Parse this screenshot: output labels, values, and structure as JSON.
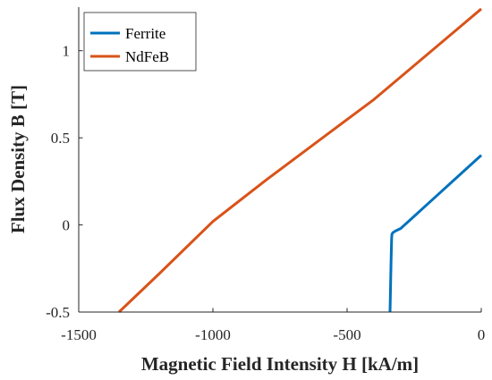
{
  "chart_data": {
    "type": "line",
    "xlabel": "Magnetic Field Intensity H [kA/m]",
    "ylabel": "Flux Density B [T]",
    "xlim": [
      -1500,
      0
    ],
    "ylim": [
      -0.5,
      1.25
    ],
    "xticks": [
      -1500,
      -1000,
      -500,
      0
    ],
    "xtick_labels": [
      "-1500",
      "-1000",
      "-500",
      "0"
    ],
    "yticks": [
      -0.5,
      0,
      0.5,
      1
    ],
    "ytick_labels": [
      "-0.5",
      "0",
      "0.5",
      "1"
    ],
    "grid": false,
    "legend_position": "top-left",
    "series": [
      {
        "name": "Ferrite",
        "color": "#0072BD",
        "x": [
          -340,
          -338,
          -336,
          -334,
          -333,
          -330,
          -320,
          -300,
          -250,
          -200,
          -150,
          -100,
          -50,
          0
        ],
        "y": [
          -0.5,
          -0.35,
          -0.2,
          -0.08,
          -0.055,
          -0.045,
          -0.035,
          -0.02,
          0.05,
          0.12,
          0.19,
          0.26,
          0.33,
          0.4
        ]
      },
      {
        "name": "NdFeB",
        "color": "#D95319",
        "x": [
          -1350,
          -1200,
          -1000,
          -800,
          -600,
          -400,
          -200,
          0
        ],
        "y": [
          -0.5,
          -0.28,
          0.02,
          0.26,
          0.49,
          0.72,
          0.98,
          1.24
        ]
      }
    ]
  }
}
